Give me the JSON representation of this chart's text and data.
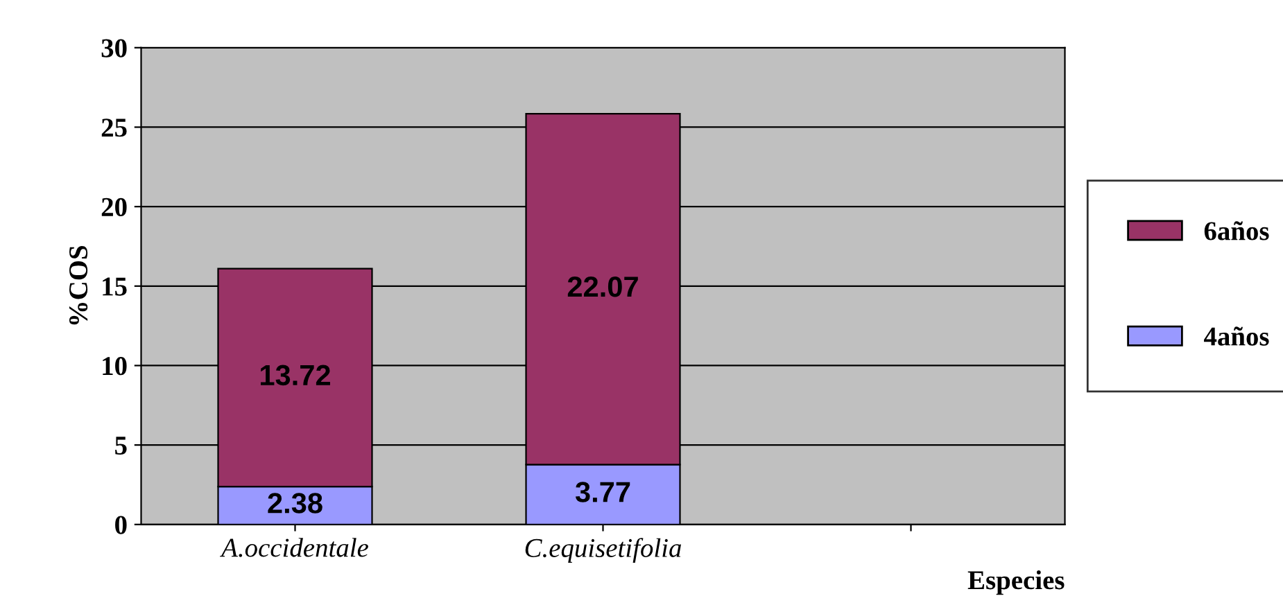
{
  "chart_data": {
    "type": "bar",
    "stacked": true,
    "xlabel": "Especies",
    "ylabel": "%COS",
    "categories": [
      "A.occidentale",
      "C.equisetifolia",
      null
    ],
    "series": [
      {
        "name": "4años",
        "color": "#9999ff",
        "values": [
          2.38,
          3.77,
          null
        ]
      },
      {
        "name": "6años",
        "color": "#993366",
        "values": [
          13.72,
          22.07,
          null
        ]
      }
    ],
    "ylim": [
      0,
      30
    ],
    "yticks": [
      0,
      5,
      10,
      15,
      20,
      25,
      30
    ],
    "grid": "y",
    "legend": "right",
    "data_labels": true
  }
}
